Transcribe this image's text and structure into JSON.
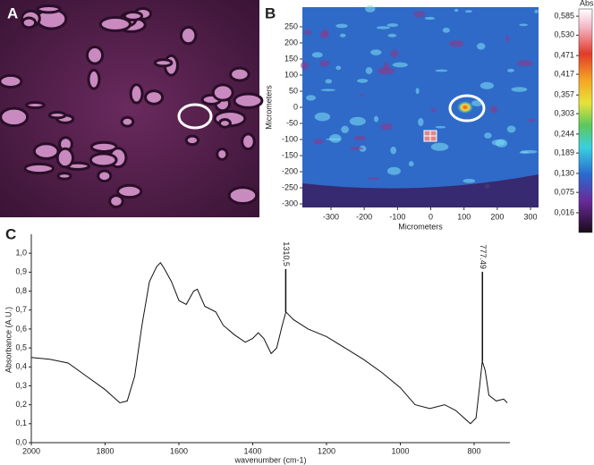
{
  "chart_data": [
    {
      "type": "image",
      "label": "A"
    },
    {
      "type": "heatmap",
      "label": "B",
      "xlabel": "Micrometers",
      "ylabel": "Micrometers",
      "xlim": [
        -386,
        324
      ],
      "xticks": [
        -300,
        -200,
        -100,
        0,
        100,
        200,
        300
      ],
      "ylim": [
        -311,
        311
      ],
      "yticks": [
        -300,
        -250,
        -200,
        -150,
        -100,
        -50,
        0,
        50,
        100,
        150,
        200,
        250
      ],
      "colorbar_title": "Abs",
      "clim": [
        -0.041,
        0.606
      ],
      "cticks": [
        {
          "value": 0.585,
          "label": "0,585"
        },
        {
          "value": 0.53,
          "label": "0,530"
        },
        {
          "value": 0.471,
          "label": "0,471"
        },
        {
          "value": 0.417,
          "label": "0,417"
        },
        {
          "value": 0.357,
          "label": "0,357"
        },
        {
          "value": 0.303,
          "label": "0,303"
        },
        {
          "value": 0.244,
          "label": "0,244"
        },
        {
          "value": 0.189,
          "label": "0,189"
        },
        {
          "value": 0.13,
          "label": "0,130"
        },
        {
          "value": 0.075,
          "label": "0,075"
        },
        {
          "value": 0.016,
          "label": "0,016"
        }
      ]
    },
    {
      "type": "line",
      "label": "C",
      "xlabel": "wavenumber (cm-1)",
      "ylabel": "Absorbance (A.U.)",
      "color": "#111111",
      "xlim": [
        2000,
        703
      ],
      "xticks": [
        2000,
        1800,
        1600,
        1400,
        1200,
        1000,
        800
      ],
      "ylim": [
        0,
        1.1
      ],
      "yticks": [
        {
          "value": 0,
          "label": "0,0"
        },
        {
          "value": 0.1,
          "label": "0,1"
        },
        {
          "value": 0.2,
          "label": "0,2"
        },
        {
          "value": 0.3,
          "label": "0,3"
        },
        {
          "value": 0.4,
          "label": "0,4"
        },
        {
          "value": 0.5,
          "label": "0,5"
        },
        {
          "value": 0.6,
          "label": "0,6"
        },
        {
          "value": 0.7,
          "label": "0,7"
        },
        {
          "value": 0.8,
          "label": "0,8"
        },
        {
          "value": 0.9,
          "label": "0,9"
        },
        {
          "value": 1.0,
          "label": "1,0"
        }
      ],
      "x": [
        2000,
        1950,
        1900,
        1850,
        1800,
        1760,
        1740,
        1720,
        1700,
        1680,
        1660,
        1650,
        1640,
        1620,
        1600,
        1580,
        1560,
        1550,
        1530,
        1500,
        1480,
        1450,
        1420,
        1400,
        1385,
        1370,
        1350,
        1335,
        1320,
        1310,
        1290,
        1250,
        1200,
        1150,
        1100,
        1050,
        1000,
        960,
        920,
        880,
        850,
        810,
        795,
        785,
        778,
        770,
        760,
        740,
        720,
        710
      ],
      "values": [
        0.45,
        0.44,
        0.42,
        0.35,
        0.28,
        0.21,
        0.22,
        0.35,
        0.62,
        0.85,
        0.93,
        0.95,
        0.92,
        0.85,
        0.75,
        0.73,
        0.8,
        0.81,
        0.72,
        0.69,
        0.62,
        0.57,
        0.53,
        0.55,
        0.58,
        0.55,
        0.47,
        0.5,
        0.62,
        0.69,
        0.65,
        0.6,
        0.56,
        0.5,
        0.44,
        0.37,
        0.29,
        0.2,
        0.18,
        0.2,
        0.17,
        0.1,
        0.13,
        0.3,
        0.43,
        0.38,
        0.25,
        0.22,
        0.23,
        0.21
      ],
      "annotations": [
        {
          "text": "1310,5",
          "x": 1310.5,
          "y": 0.69
        },
        {
          "text": "777.49",
          "x": 777.49,
          "y": 0.43
        }
      ]
    }
  ]
}
